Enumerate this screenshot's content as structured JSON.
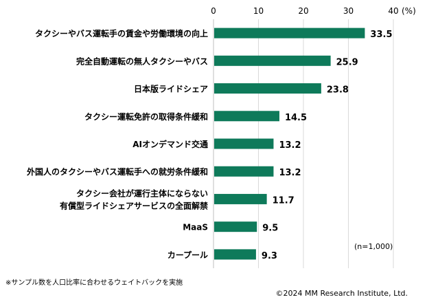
{
  "chart_data": {
    "type": "bar",
    "orientation": "horizontal",
    "categories": [
      [
        "タクシーやバス運転手の賃金や労働環境の向上"
      ],
      [
        "完全自動運転の無人タクシーやバス"
      ],
      [
        "日本版ライドシェア"
      ],
      [
        "タクシー運転免許の取得条件緩和"
      ],
      [
        "AIオンデマンド交通"
      ],
      [
        "外国人のタクシーやバス運転手への就労条件緩和"
      ],
      [
        "タクシー会社が運行主体にならない",
        "有償型ライドシェアサービスの全面解禁"
      ],
      [
        "MaaS"
      ],
      [
        "カープール"
      ]
    ],
    "values": [
      33.5,
      25.9,
      23.8,
      14.5,
      13.2,
      13.2,
      11.7,
      9.5,
      9.3
    ],
    "value_labels": [
      "33.5",
      "25.9",
      "23.8",
      "14.5",
      "13.2",
      "13.2",
      "11.7",
      "9.5",
      "9.3"
    ],
    "xlim": [
      0,
      40
    ],
    "ticks": [
      0,
      10,
      20,
      30,
      40
    ],
    "tick_labels": [
      "0",
      "10",
      "20",
      "30",
      "40"
    ],
    "unit_label": "(%)",
    "grid": true,
    "bar_color": "#0e7a5a",
    "grid_color": "#d9d9d9"
  },
  "sample_size": "(n=1,000)",
  "footnote": "※サンプル数を人口比率に合わせるウェイトバックを実施",
  "copyright": "©2024 MM Research Institute, Ltd."
}
